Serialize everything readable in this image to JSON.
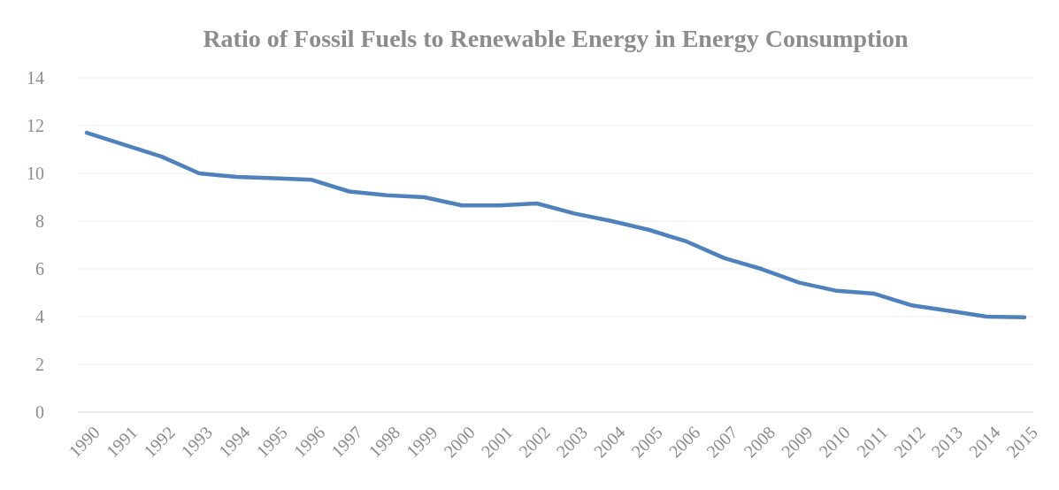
{
  "chart_data": {
    "type": "line",
    "title": "Ratio of Fossil Fuels to Renewable Energy in Energy Consumption",
    "categories": [
      "1990",
      "1991",
      "1992",
      "1993",
      "1994",
      "1995",
      "1996",
      "1997",
      "1998",
      "1999",
      "2000",
      "2001",
      "2002",
      "2003",
      "2004",
      "2005",
      "2006",
      "2007",
      "2008",
      "2009",
      "2010",
      "2011",
      "2012",
      "2013",
      "2014",
      "2015"
    ],
    "series": [
      {
        "color": "#4f81bd",
        "values": [
          11.7,
          11.2,
          10.7,
          10.0,
          9.85,
          9.8,
          9.73,
          9.24,
          9.08,
          9.0,
          8.66,
          8.66,
          8.74,
          8.32,
          8.0,
          7.63,
          7.14,
          6.45,
          5.99,
          5.42,
          5.08,
          4.96,
          4.47,
          4.24,
          4.0,
          3.97
        ]
      }
    ],
    "ylim": [
      0,
      14
    ],
    "yticks": [
      0,
      2,
      4,
      6,
      8,
      10,
      12,
      14
    ],
    "grid": "y",
    "legend": false,
    "marker": "none",
    "line_style": "solid"
  }
}
